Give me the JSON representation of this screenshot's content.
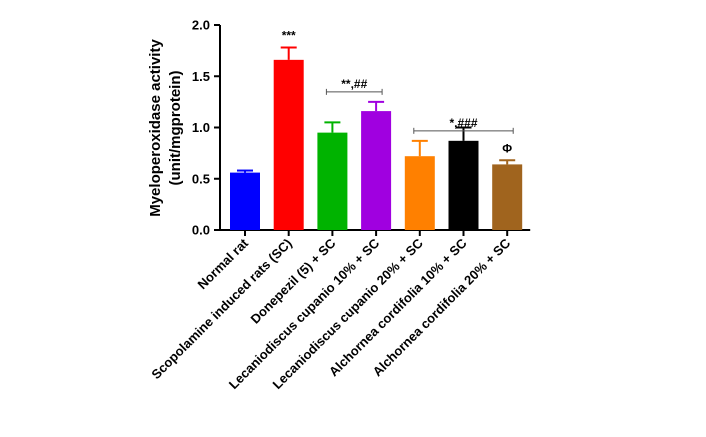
{
  "chart_data": {
    "type": "bar",
    "ylabel_line1": "Myeloperoxidase activity",
    "ylabel_line2": "(unit/mgprotein)",
    "ylim": [
      0,
      2.0
    ],
    "yticks": [
      "0.0",
      "0.5",
      "1.0",
      "1.5",
      "2.0"
    ],
    "grid": false,
    "categories": [
      "Normal rat",
      "Scopolamine induced rats (SC)",
      "Donepezil (5) + SC",
      "Lecaniodiscus cupanio 10% + SC",
      "Lecaniodiscus cupanio 20% + SC",
      "Alchornea cordifolia 10% + SC",
      "Alchornea cordifolia 20% + SC"
    ],
    "values": [
      0.56,
      1.66,
      0.95,
      1.16,
      0.72,
      0.87,
      0.64
    ],
    "errors": [
      0.02,
      0.12,
      0.1,
      0.09,
      0.15,
      0.13,
      0.04
    ],
    "colors": [
      "#0000ff",
      "#ff0000",
      "#00b300",
      "#a000e0",
      "#ff8000",
      "#000000",
      "#a0641e"
    ],
    "annotations": [
      {
        "text": "***",
        "bars": [
          1
        ]
      },
      {
        "text": "**,##",
        "bars": [
          2,
          3
        ]
      },
      {
        "text": "*,###",
        "bars": [
          4,
          6
        ]
      },
      {
        "text": "Φ",
        "bars": [
          6
        ]
      }
    ]
  }
}
